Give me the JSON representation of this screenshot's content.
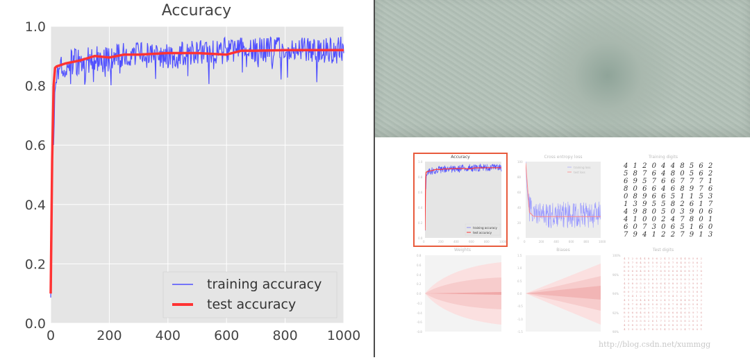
{
  "chart_data": {
    "type": "line",
    "title": "Accuracy",
    "xlabel": "",
    "ylabel": "",
    "xlim": [
      0,
      1000
    ],
    "ylim": [
      0.0,
      1.0
    ],
    "x_ticks": [
      "0",
      "200",
      "400",
      "600",
      "800",
      "1000"
    ],
    "y_ticks": [
      "0.0",
      "0.2",
      "0.4",
      "0.6",
      "0.8",
      "1.0"
    ],
    "grid": true,
    "legend_position": "bottom-right",
    "series": [
      {
        "name": "training accuracy",
        "color": "#4f4fff",
        "style": "noisy",
        "x": [
          0,
          5,
          10,
          15,
          20,
          30,
          40,
          60,
          80,
          100,
          150,
          200,
          250,
          300,
          350,
          400,
          450,
          500,
          550,
          600,
          650,
          700,
          750,
          800,
          850,
          900,
          950,
          1000
        ],
        "values": [
          0.1,
          0.7,
          0.6,
          0.82,
          0.86,
          0.86,
          0.87,
          0.87,
          0.88,
          0.88,
          0.89,
          0.89,
          0.9,
          0.9,
          0.9,
          0.9,
          0.905,
          0.91,
          0.91,
          0.92,
          0.92,
          0.92,
          0.92,
          0.92,
          0.92,
          0.92,
          0.92,
          0.92
        ]
      },
      {
        "name": "test accuracy",
        "color": "#ff3333",
        "x": [
          0,
          5,
          10,
          15,
          20,
          50,
          100,
          150,
          200,
          250,
          300,
          400,
          500,
          600,
          650,
          700,
          800,
          900,
          1000
        ],
        "values": [
          0.1,
          0.55,
          0.8,
          0.86,
          0.865,
          0.875,
          0.885,
          0.9,
          0.895,
          0.905,
          0.905,
          0.91,
          0.91,
          0.905,
          0.918,
          0.918,
          0.92,
          0.92,
          0.92
        ]
      }
    ]
  },
  "thumbnails": {
    "accuracy_title": "Accuracy",
    "loss_title": "Cross entropy loss",
    "training_digits_title": "Training digits",
    "weights_title": "Weights",
    "biases_title": "Biases",
    "test_digits_title": "Test digits",
    "acc_legend_train": "training accuracy",
    "acc_legend_test": "test accuracy",
    "loss_legend_train": "training loss",
    "loss_legend_test": "test loss",
    "acc_y_ticks": [
      "1.0",
      "0.8",
      "0.6",
      "0.4",
      "0.2",
      "0.0"
    ],
    "acc_x_ticks": [
      "0",
      "200",
      "400",
      "600",
      "800",
      "1000"
    ],
    "loss_y_ticks": [
      "100",
      "80",
      "60",
      "40",
      "20",
      "0"
    ],
    "weights_y_ticks": [
      "0.8",
      "0.6",
      "0.4",
      "0.2",
      "0.0",
      "-0.2",
      "-0.4",
      "-0.6",
      "-0.8"
    ],
    "biases_y_ticks": [
      "1.5",
      "1.0",
      "0.5",
      "0.0",
      "-0.5",
      "-1.0",
      "-1.5"
    ],
    "test_y_ticks": [
      "100%",
      "96%",
      "94%",
      "92%",
      "90%"
    ],
    "digits_rows": [
      "4 1 2 0 4 4 8 5 6 2",
      "5 8 7 6 4 8 0 5 6 2",
      "6 9 5 7 6 6 7 7 7 1",
      "8 0 6 6 4 6 8 9 7 6",
      "0 8 9 6 6 5 1 1 5 3",
      "1 3 9 5 5 8 2 6 1 7",
      "4 9 8 0 5 0 3 9 0 6",
      "4 1 0 0 2 4 7 8 0 1",
      "6 0 7 3 0 6 5 1 6 0",
      "7 9 4 1 2 2 7 9 1 3"
    ],
    "watermark": "http://blog.csdn.net/xummgg"
  }
}
